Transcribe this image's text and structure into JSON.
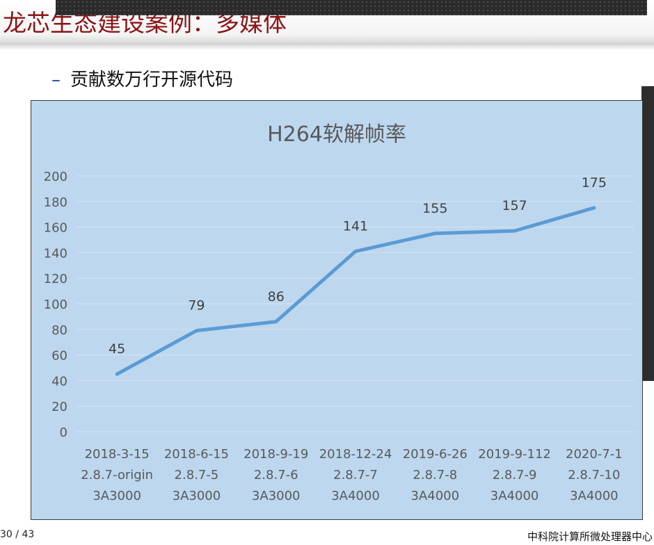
{
  "slide": {
    "title": "龙芯生态建设案例：多媒体",
    "bullet": "贡献数万行开源代码"
  },
  "footer": {
    "page_current": "30",
    "page_separator": "/",
    "page_total": "43",
    "organization": "中科院计算所微处理器中心"
  },
  "colors": {
    "title": "#8b1416",
    "chart_background": "#bdd7ee",
    "line": "#5b9bd5",
    "bullet_dash": "#1f3f9a"
  },
  "chart_data": {
    "type": "line",
    "title": "H264软解帧率",
    "xlabel": "",
    "ylabel": "",
    "ylim": [
      0,
      200
    ],
    "yticks": [
      0,
      20,
      40,
      60,
      80,
      100,
      120,
      140,
      160,
      180,
      200
    ],
    "grid": true,
    "categories": [
      [
        "2018-3-15",
        "2.8.7-origin",
        "3A3000"
      ],
      [
        "2018-6-15",
        "2.8.7-5",
        "3A3000"
      ],
      [
        "2018-9-19",
        "2.8.7-6",
        "3A3000"
      ],
      [
        "2018-12-24",
        "2.8.7-7",
        "3A4000"
      ],
      [
        "2019-6-26",
        "2.8.7-8",
        "3A4000"
      ],
      [
        "2019-9-112",
        "2.8.7-9",
        "3A4000"
      ],
      [
        "2020-7-1",
        "2.8.7-10",
        "3A4000"
      ]
    ],
    "series": [
      {
        "values": [
          45,
          79,
          86,
          141,
          155,
          157,
          175
        ],
        "data_labels": true
      }
    ]
  }
}
